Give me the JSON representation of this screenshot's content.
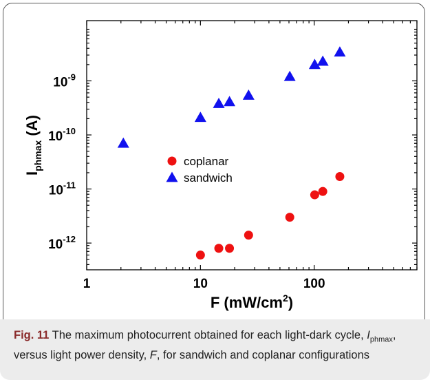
{
  "chart_data": {
    "type": "scatter",
    "xscale": "log",
    "yscale": "log",
    "xlim": [
      1,
      800
    ],
    "ylim": [
      3.2e-13,
      1.3e-08
    ],
    "x_ticks": [
      {
        "value": 1,
        "label": "1"
      },
      {
        "value": 10,
        "label": "10"
      },
      {
        "value": 100,
        "label": "100"
      }
    ],
    "y_ticks": [
      {
        "value": 1e-12,
        "base": "10",
        "exp": "-12"
      },
      {
        "value": 1e-11,
        "base": "10",
        "exp": "-11"
      },
      {
        "value": 1e-10,
        "base": "10",
        "exp": "-10"
      },
      {
        "value": 1e-09,
        "base": "10",
        "exp": "-9"
      }
    ],
    "xlabel": {
      "main": "F  (mW/cm",
      "sup": "2",
      "end": ")"
    },
    "ylabel": {
      "main": "I",
      "sub": "phmax",
      "end": " (A)"
    },
    "legend_position": "center-left",
    "series": [
      {
        "name": "coplanar",
        "marker": "circle",
        "color": "#ee1111",
        "points": [
          {
            "x": 10,
            "y": 6e-13
          },
          {
            "x": 14.5,
            "y": 8e-13
          },
          {
            "x": 18,
            "y": 8e-13
          },
          {
            "x": 26.5,
            "y": 1.4e-12
          },
          {
            "x": 61,
            "y": 3e-12
          },
          {
            "x": 101,
            "y": 7.8e-12
          },
          {
            "x": 119,
            "y": 9e-12
          },
          {
            "x": 168,
            "y": 1.7e-11
          }
        ]
      },
      {
        "name": "sandwich",
        "marker": "triangle",
        "color": "#1111ee",
        "points": [
          {
            "x": 2.1,
            "y": 7e-11
          },
          {
            "x": 10,
            "y": 2.1e-10
          },
          {
            "x": 14.5,
            "y": 3.8e-10
          },
          {
            "x": 18,
            "y": 4.1e-10
          },
          {
            "x": 26.5,
            "y": 5.4e-10
          },
          {
            "x": 61,
            "y": 1.2e-09
          },
          {
            "x": 101,
            "y": 2e-09
          },
          {
            "x": 119,
            "y": 2.3e-09
          },
          {
            "x": 168,
            "y": 3.4e-09
          }
        ]
      }
    ]
  },
  "caption": {
    "label": "Fig. 11",
    "text_1": " The maximum photocurrent obtained for each light-dark cycle, ",
    "i_symbol": "I",
    "i_sub": "phmax",
    "text_2": ", versus light power density, ",
    "f_symbol": "F",
    "text_3": ", for sandwich and coplanar configurations"
  }
}
